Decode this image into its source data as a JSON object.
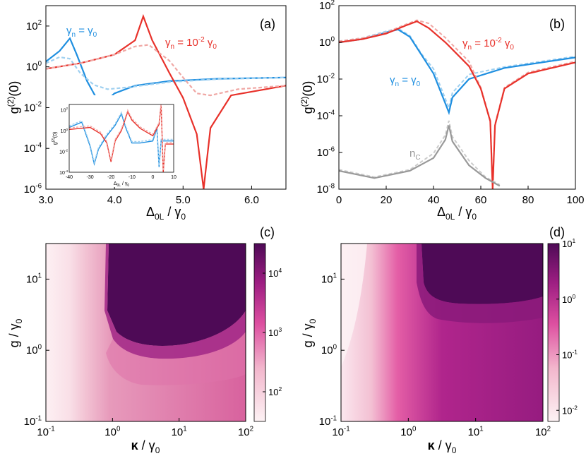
{
  "chart_data": [
    {
      "panel": "(a)",
      "type": "line",
      "xlabel_main": "Δ",
      "xlabel_sub": "0L",
      "xlabel_rest": " / γ",
      "xlabel_sub2": "0",
      "ylabel_main": "g",
      "ylabel_sup": "(2)",
      "ylabel_rest": "(0)",
      "xlim": [
        3.0,
        6.5
      ],
      "ylim_log10": [
        -6,
        3
      ],
      "yscale": "log",
      "xticks": [
        "3.0",
        "4.0",
        "5.0",
        "6.0"
      ],
      "yticks": [
        "10-6",
        "10-4",
        "10-2",
        "100",
        "102"
      ],
      "annotations": [
        "γn = γ0",
        "γn = 10-2 γ0"
      ],
      "series": [
        {
          "color": "#1f8fe0",
          "style": "solid",
          "points": [
            [
              3.0,
              1.8
            ],
            [
              3.2,
              6
            ],
            [
              3.35,
              25
            ],
            [
              3.45,
              4
            ],
            [
              3.6,
              0.2
            ],
            [
              3.8,
              0.012
            ],
            [
              4.0,
              0.05
            ],
            [
              4.3,
              0.12
            ],
            [
              4.8,
              0.2
            ],
            [
              5.5,
              0.26
            ],
            [
              6.5,
              0.3
            ]
          ]
        },
        {
          "color": "#9fd0f0",
          "style": "dashed",
          "points": [
            [
              3.0,
              1.5
            ],
            [
              3.2,
              3
            ],
            [
              3.35,
              2.5
            ],
            [
              3.5,
              0.5
            ],
            [
              3.7,
              0.13
            ],
            [
              3.9,
              0.08
            ],
            [
              4.2,
              0.1
            ],
            [
              4.8,
              0.18
            ],
            [
              5.5,
              0.25
            ],
            [
              6.5,
              0.3
            ]
          ]
        },
        {
          "color": "#e8312a",
          "style": "solid",
          "points": [
            [
              3.0,
              0.8
            ],
            [
              3.5,
              1.5
            ],
            [
              4.0,
              4
            ],
            [
              4.3,
              20
            ],
            [
              4.42,
              300
            ],
            [
              4.55,
              20
            ],
            [
              4.8,
              0.5
            ],
            [
              5.0,
              0.03
            ],
            [
              5.2,
              0.0005
            ],
            [
              5.3,
              1e-06
            ],
            [
              5.4,
              0.001
            ],
            [
              5.7,
              0.04
            ],
            [
              6.5,
              0.12
            ]
          ]
        },
        {
          "color": "#f0a8a5",
          "style": "dashed",
          "points": [
            [
              3.0,
              0.8
            ],
            [
              3.5,
              1.5
            ],
            [
              4.0,
              4
            ],
            [
              4.3,
              10
            ],
            [
              4.5,
              12
            ],
            [
              4.8,
              2
            ],
            [
              5.0,
              0.3
            ],
            [
              5.2,
              0.05
            ],
            [
              5.4,
              0.04
            ],
            [
              5.8,
              0.08
            ],
            [
              6.5,
              0.12
            ]
          ]
        }
      ],
      "inset": {
        "xlim": [
          -40,
          10
        ],
        "ylim_log10": [
          -4,
          2.5
        ],
        "xticks": [
          "-40",
          "-30",
          "-20",
          "-10",
          "0",
          "10"
        ],
        "yticks": [
          "10-4",
          "10-2",
          "100",
          "102"
        ],
        "xlabel": "Δ0L / γ0",
        "ylabel": "g(2)(0)"
      }
    },
    {
      "panel": "(b)",
      "type": "line",
      "xlim": [
        0,
        100
      ],
      "ylim_log10": [
        -8,
        2
      ],
      "yscale": "log",
      "xticks": [
        "0",
        "20",
        "40",
        "60",
        "80",
        "100"
      ],
      "yticks": [
        "10-8",
        "10-6",
        "10-4",
        "10-2",
        "100",
        "102"
      ],
      "annotations": [
        "γn = 10-2 γ0",
        "γn = γ0",
        "nc"
      ],
      "series": [
        {
          "color": "#1f8fe0",
          "style": "solid",
          "points": [
            [
              0,
              1
            ],
            [
              10,
              1.5
            ],
            [
              20,
              3.5
            ],
            [
              25,
              5
            ],
            [
              30,
              2
            ],
            [
              35,
              0.2
            ],
            [
              40,
              0.02
            ],
            [
              44,
              0.001
            ],
            [
              46.5,
              0.00015
            ],
            [
              48,
              0.001
            ],
            [
              55,
              0.01
            ],
            [
              70,
              0.04
            ],
            [
              100,
              0.15
            ]
          ]
        },
        {
          "color": "#e8312a",
          "style": "solid",
          "points": [
            [
              0,
              1
            ],
            [
              10,
              1.5
            ],
            [
              20,
              3
            ],
            [
              28,
              8
            ],
            [
              33,
              14
            ],
            [
              38,
              6
            ],
            [
              45,
              1
            ],
            [
              55,
              0.05
            ],
            [
              60,
              0.003
            ],
            [
              64,
              5e-05
            ],
            [
              65,
              1e-08
            ],
            [
              66,
              3e-05
            ],
            [
              70,
              0.003
            ],
            [
              80,
              0.02
            ],
            [
              100,
              0.08
            ]
          ]
        },
        {
          "color": "#999999",
          "style": "solid",
          "points": [
            [
              0,
              1e-07
            ],
            [
              15,
              4e-08
            ],
            [
              30,
              1e-07
            ],
            [
              40,
              5e-07
            ],
            [
              45,
              5e-06
            ],
            [
              46.5,
              3e-05
            ],
            [
              48,
              4e-06
            ],
            [
              55,
              2e-07
            ],
            [
              62,
              4e-08
            ],
            [
              68,
              1.5e-08
            ]
          ]
        }
      ]
    },
    {
      "panel": "(c)",
      "type": "heatmap",
      "xlabel": "κ / γ0",
      "ylabel": "g / γ0",
      "xlim_log10": [
        -1,
        2
      ],
      "ylim_log10": [
        -1,
        1.5
      ],
      "xticks": [
        "10-1",
        "100",
        "101",
        "102"
      ],
      "yticks": [
        "10-1",
        "100",
        "101"
      ],
      "colorbar_ticks": [
        "102",
        "103",
        "104"
      ],
      "colorbar_range_log10": [
        1.5,
        4.5
      ],
      "colormap": [
        "#fdf2f4",
        "#f2b6cc",
        "#dd4fa0",
        "#9d1e82",
        "#4e0a56"
      ]
    },
    {
      "panel": "(d)",
      "type": "heatmap",
      "xlabel": "κ / γ0",
      "ylabel": "g / γ0",
      "xlim_log10": [
        -1,
        2
      ],
      "ylim_log10": [
        -1,
        1.5
      ],
      "xticks": [
        "10-1",
        "100",
        "101",
        "102"
      ],
      "yticks": [
        "10-1",
        "100",
        "101"
      ],
      "colorbar_ticks": [
        "10-2",
        "10-1",
        "100",
        "101"
      ],
      "colorbar_range_log10": [
        -2.2,
        1
      ],
      "colormap": [
        "#fdf2f4",
        "#f2b6cc",
        "#dd4fa0",
        "#9d1e82",
        "#4e0a56"
      ]
    }
  ]
}
